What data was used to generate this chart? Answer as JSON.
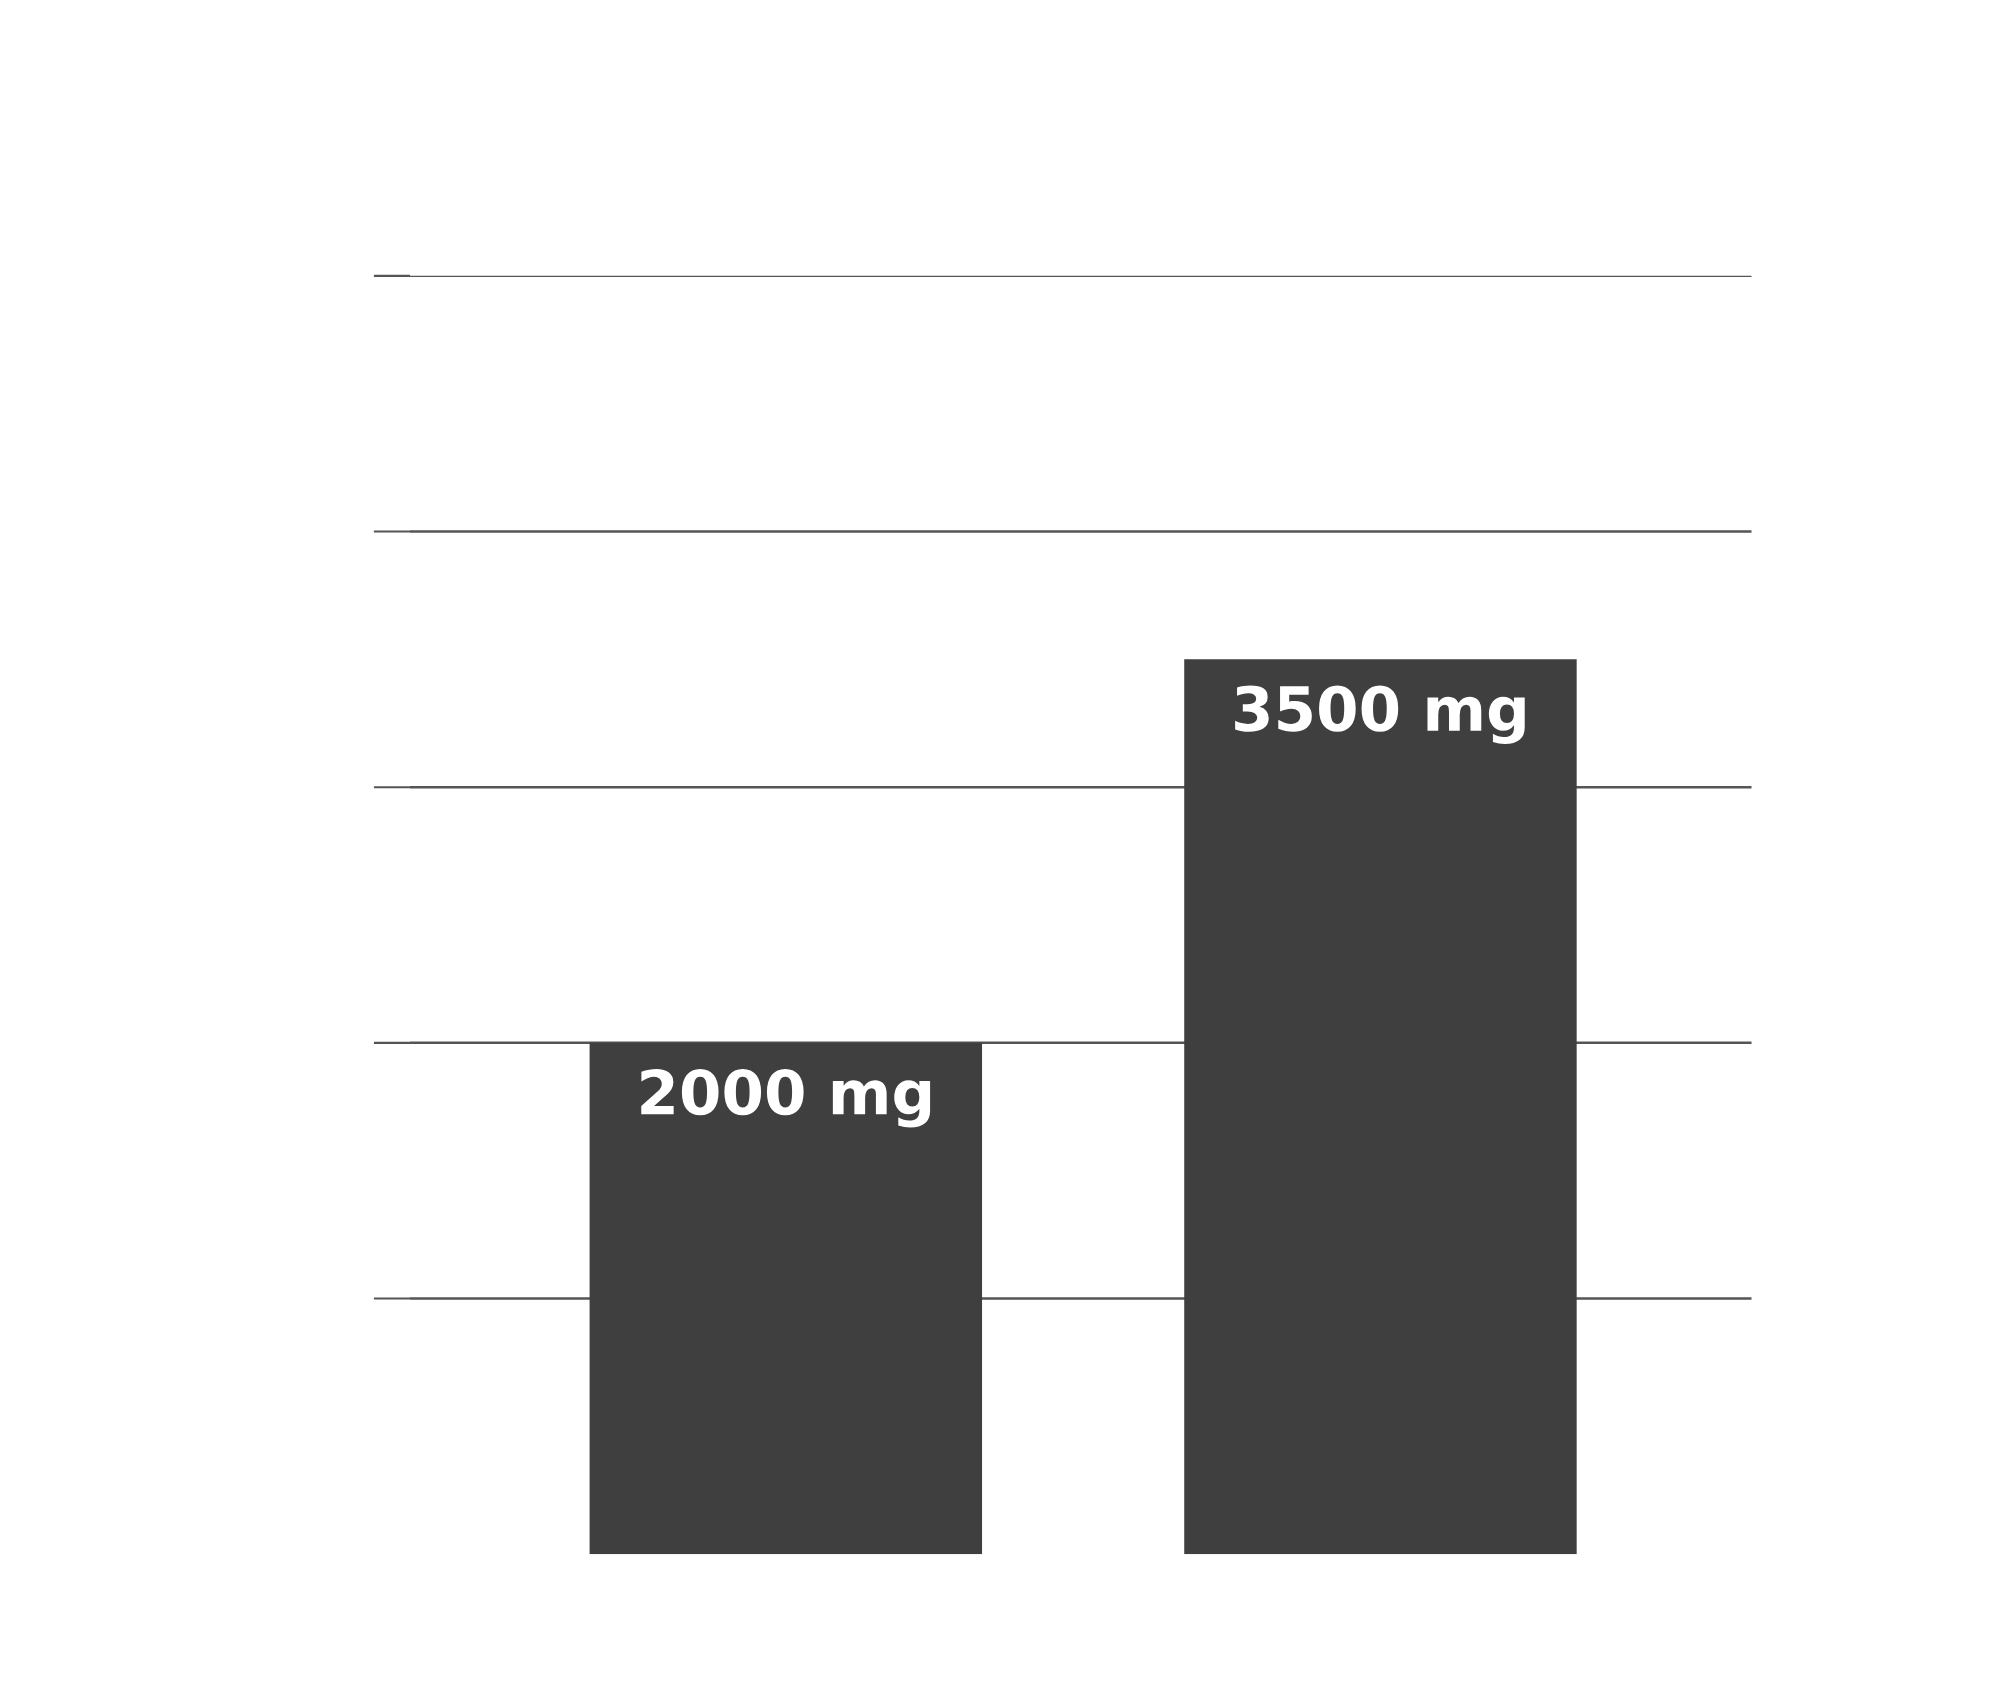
{
  "chart_data": {
    "type": "bar",
    "categories": [
      null,
      null
    ],
    "values": [
      2000,
      3500
    ],
    "value_labels": [
      "2000 mg",
      "3500 mg"
    ],
    "color": "#3f3f3f",
    "ylim": [
      0,
      5000
    ],
    "yticks": [
      {
        "value": 1000,
        "label": null
      },
      {
        "value": 2000,
        "label": null
      },
      {
        "value": 3000,
        "label": null
      },
      {
        "value": 4000,
        "label": null
      },
      {
        "value": 5000,
        "label": null
      }
    ],
    "grid": "y",
    "legend": false
  }
}
